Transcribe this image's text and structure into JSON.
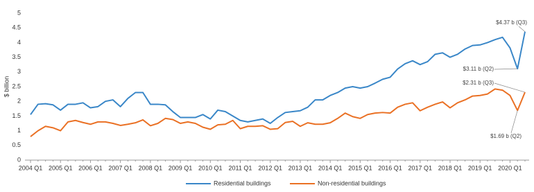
{
  "chart_data": {
    "type": "line",
    "y_label": "$ billion",
    "categories": [
      "2004 Q1",
      null,
      null,
      null,
      "2005 Q1",
      null,
      null,
      null,
      "2006 Q1",
      null,
      null,
      null,
      "2007 Q1",
      null,
      null,
      null,
      "2008 Q1",
      null,
      null,
      null,
      "2009 Q1",
      null,
      null,
      null,
      "2010 Q1",
      null,
      null,
      null,
      "2011 Q1",
      null,
      null,
      null,
      "2012 Q1",
      null,
      null,
      null,
      "2013 Q1",
      null,
      null,
      null,
      "2014 Q1",
      null,
      null,
      null,
      "2015 Q1",
      null,
      null,
      null,
      "2016 Q1",
      null,
      null,
      null,
      "2017 Q1",
      null,
      null,
      null,
      "2018 Q1",
      null,
      null,
      null,
      "2019 Q1",
      null,
      null,
      null,
      "2020 Q1",
      null,
      null
    ],
    "series": [
      {
        "name": "Residential buildings",
        "color": "#3a87c8",
        "values": [
          1.55,
          1.9,
          1.92,
          1.88,
          1.7,
          1.9,
          1.9,
          1.95,
          1.78,
          1.82,
          2.0,
          2.05,
          1.82,
          2.1,
          2.3,
          2.3,
          1.9,
          1.9,
          1.88,
          1.65,
          1.45,
          1.45,
          1.45,
          1.55,
          1.4,
          1.7,
          1.65,
          1.5,
          1.35,
          1.3,
          1.35,
          1.4,
          1.25,
          1.45,
          1.62,
          1.65,
          1.68,
          1.8,
          2.05,
          2.05,
          2.2,
          2.3,
          2.45,
          2.5,
          2.45,
          2.5,
          2.62,
          2.75,
          2.82,
          3.1,
          3.28,
          3.38,
          3.25,
          3.35,
          3.6,
          3.65,
          3.5,
          3.6,
          3.78,
          3.9,
          3.92,
          4.0,
          4.1,
          4.18,
          3.82,
          3.11,
          4.37
        ]
      },
      {
        "name": "Non-residential buildings",
        "color": "#ea7125",
        "values": [
          0.8,
          1.0,
          1.15,
          1.1,
          1.0,
          1.3,
          1.35,
          1.28,
          1.22,
          1.3,
          1.3,
          1.25,
          1.18,
          1.22,
          1.27,
          1.37,
          1.17,
          1.25,
          1.42,
          1.38,
          1.25,
          1.3,
          1.25,
          1.12,
          1.05,
          1.2,
          1.22,
          1.35,
          1.07,
          1.15,
          1.15,
          1.17,
          1.05,
          1.07,
          1.28,
          1.32,
          1.15,
          1.27,
          1.22,
          1.22,
          1.27,
          1.42,
          1.6,
          1.48,
          1.42,
          1.55,
          1.6,
          1.62,
          1.6,
          1.8,
          1.9,
          1.95,
          1.68,
          1.8,
          1.9,
          1.98,
          1.78,
          1.95,
          2.05,
          2.18,
          2.2,
          2.25,
          2.42,
          2.38,
          2.2,
          1.69,
          2.31
        ]
      }
    ],
    "annotations": [
      "$4.37 b (Q3)",
      "$3.11 b (Q2)",
      "$2.31 b (Q3)",
      "$1.69 b (Q2)"
    ],
    "ylim": [
      0,
      5
    ],
    "yticks": [
      0,
      0.5,
      1,
      1.5,
      2,
      2.5,
      3,
      3.5,
      4,
      4.5,
      5
    ],
    "grid": false,
    "legend": "bottom"
  }
}
